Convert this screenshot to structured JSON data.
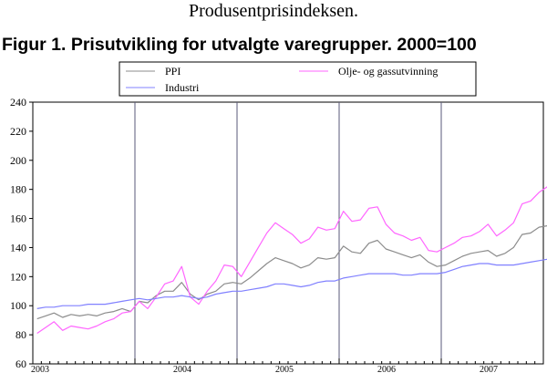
{
  "header": {
    "title": "Produsentprisindeksen."
  },
  "chart_data": {
    "type": "line",
    "title": "Figur 1. Prisutvikling for utvalgte varegrupper. 2000=100",
    "xlabel": "",
    "ylabel": "",
    "ylim": [
      60,
      240
    ],
    "yticks": [
      "60",
      "80",
      "100",
      "120",
      "140",
      "160",
      "180",
      "200",
      "220",
      "240"
    ],
    "xticks": [
      "2003",
      "2004",
      "2005",
      "2006",
      "2007"
    ],
    "grid": "vertical lines at year boundaries",
    "legend_position": "top",
    "x_start": "2003-01",
    "x_frequency": "monthly",
    "series": [
      {
        "name": "PPI",
        "color": "#8c8c8c",
        "values": [
          91,
          93,
          95,
          92,
          94,
          93,
          94,
          93,
          95,
          96,
          98,
          96,
          103,
          102,
          107,
          110,
          110,
          116,
          108,
          104,
          108,
          110,
          115,
          116,
          115,
          119,
          124,
          129,
          133,
          131,
          129,
          126,
          128,
          133,
          132,
          133,
          141,
          137,
          136,
          143,
          145,
          139,
          137,
          135,
          133,
          135,
          130,
          127,
          128,
          131,
          134,
          136,
          137,
          138,
          134,
          136,
          140,
          149,
          150,
          154,
          155,
          157,
          158,
          163,
          170,
          177
        ]
      },
      {
        "name": "Olje- og gassutvinning",
        "color": "#ff66ff",
        "values": [
          81,
          85,
          89,
          83,
          86,
          85,
          84,
          86,
          89,
          91,
          95,
          96,
          103,
          98,
          106,
          115,
          117,
          127,
          106,
          101,
          110,
          117,
          128,
          127,
          120,
          130,
          140,
          150,
          157,
          153,
          149,
          143,
          146,
          154,
          152,
          153,
          165,
          158,
          159,
          167,
          168,
          156,
          150,
          148,
          145,
          147,
          138,
          137,
          140,
          143,
          147,
          148,
          151,
          156,
          148,
          152,
          157,
          170,
          172,
          178,
          182,
          186,
          188,
          198,
          213,
          229
        ]
      },
      {
        "name": "Industri",
        "color": "#8080ff",
        "values": [
          98,
          99,
          99,
          100,
          100,
          100,
          101,
          101,
          101,
          102,
          103,
          104,
          105,
          104,
          105,
          106,
          106,
          107,
          106,
          105,
          106,
          108,
          109,
          110,
          110,
          111,
          112,
          113,
          115,
          115,
          114,
          113,
          114,
          116,
          117,
          117,
          119,
          120,
          121,
          122,
          122,
          122,
          122,
          121,
          121,
          122,
          122,
          122,
          123,
          125,
          127,
          128,
          129,
          129,
          128,
          128,
          128,
          129,
          130,
          131,
          132,
          133,
          134,
          136,
          138,
          139
        ]
      }
    ]
  }
}
